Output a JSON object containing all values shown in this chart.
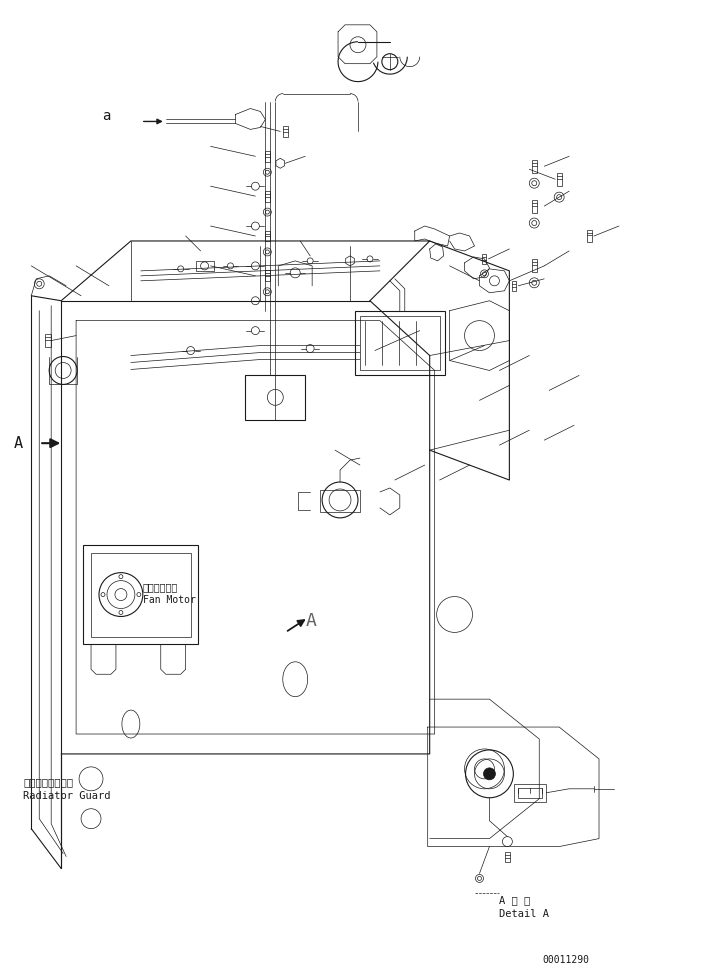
{
  "bg_color": "#ffffff",
  "line_color": "#1a1a1a",
  "figsize": [
    7.02,
    9.72
  ],
  "dpi": 100,
  "labels": {
    "a_label": "a",
    "A_label": "A",
    "fan_motor_jp": "ファンモータ",
    "fan_motor_en": "Fan Motor",
    "radiator_guard_jp": "ラジエータガード",
    "radiator_guard_en": "Radiator Guard",
    "detail_jp": "A 詳 細",
    "detail_en": "Detail A",
    "part_number": "00011290"
  },
  "font_size_small": 7,
  "font_size_medium": 8,
  "font_size_large": 9,
  "lw_thin": 0.5,
  "lw_med": 0.8,
  "lw_thick": 1.1
}
